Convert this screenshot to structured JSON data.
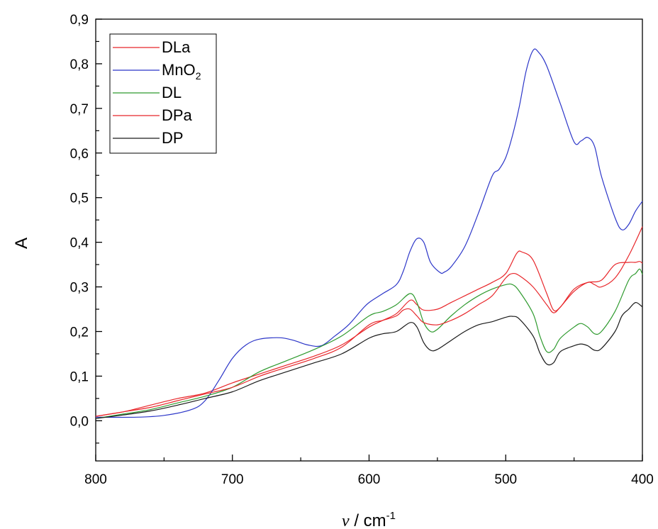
{
  "chart_data": {
    "type": "line",
    "title": "",
    "xlabel": {
      "symbol": "ν",
      "unit": " / cm",
      "exp": "-1"
    },
    "ylabel": "A",
    "xlim": [
      800,
      400
    ],
    "ylim": [
      -0.09,
      0.9
    ],
    "x_reversed": true,
    "grid": false,
    "legend_position": "top-left",
    "x_ticks": [
      {
        "v": 800,
        "label": "800"
      },
      {
        "v": 700,
        "label": "700"
      },
      {
        "v": 600,
        "label": "600"
      },
      {
        "v": 500,
        "label": "500"
      },
      {
        "v": 400,
        "label": "400"
      }
    ],
    "y_ticks": [
      {
        "v": 0.0,
        "label": "0,0"
      },
      {
        "v": 0.1,
        "label": "0,1"
      },
      {
        "v": 0.2,
        "label": "0,2"
      },
      {
        "v": 0.3,
        "label": "0,3"
      },
      {
        "v": 0.4,
        "label": "0,4"
      },
      {
        "v": 0.5,
        "label": "0,5"
      },
      {
        "v": 0.6,
        "label": "0,6"
      },
      {
        "v": 0.7,
        "label": "0,7"
      },
      {
        "v": 0.8,
        "label": "0,8"
      },
      {
        "v": 0.9,
        "label": "0,9"
      }
    ],
    "series": [
      {
        "name": "DLa",
        "name_sub": "",
        "color": "#e8262a",
        "points": [
          [
            800,
            0.01
          ],
          [
            780,
            0.02
          ],
          [
            760,
            0.035
          ],
          [
            740,
            0.05
          ],
          [
            720,
            0.062
          ],
          [
            700,
            0.085
          ],
          [
            680,
            0.105
          ],
          [
            660,
            0.125
          ],
          [
            640,
            0.145
          ],
          [
            620,
            0.17
          ],
          [
            600,
            0.21
          ],
          [
            590,
            0.225
          ],
          [
            580,
            0.24
          ],
          [
            570,
            0.27
          ],
          [
            565,
            0.26
          ],
          [
            560,
            0.248
          ],
          [
            550,
            0.25
          ],
          [
            540,
            0.265
          ],
          [
            530,
            0.28
          ],
          [
            520,
            0.295
          ],
          [
            510,
            0.31
          ],
          [
            500,
            0.33
          ],
          [
            492,
            0.375
          ],
          [
            488,
            0.378
          ],
          [
            480,
            0.36
          ],
          [
            470,
            0.285
          ],
          [
            465,
            0.248
          ],
          [
            460,
            0.255
          ],
          [
            450,
            0.295
          ],
          [
            440,
            0.31
          ],
          [
            430,
            0.315
          ],
          [
            420,
            0.35
          ],
          [
            410,
            0.355
          ],
          [
            405,
            0.355
          ],
          [
            402,
            0.357
          ],
          [
            400,
            0.353
          ]
        ]
      },
      {
        "name": "MnO",
        "name_sub": "2",
        "color": "#2b35c8",
        "points": [
          [
            800,
            0.008
          ],
          [
            770,
            0.008
          ],
          [
            750,
            0.012
          ],
          [
            730,
            0.025
          ],
          [
            720,
            0.045
          ],
          [
            710,
            0.09
          ],
          [
            700,
            0.14
          ],
          [
            690,
            0.17
          ],
          [
            680,
            0.183
          ],
          [
            665,
            0.186
          ],
          [
            655,
            0.18
          ],
          [
            645,
            0.17
          ],
          [
            635,
            0.168
          ],
          [
            625,
            0.19
          ],
          [
            615,
            0.215
          ],
          [
            605,
            0.25
          ],
          [
            600,
            0.265
          ],
          [
            590,
            0.285
          ],
          [
            580,
            0.305
          ],
          [
            575,
            0.335
          ],
          [
            570,
            0.38
          ],
          [
            565,
            0.408
          ],
          [
            560,
            0.4
          ],
          [
            555,
            0.355
          ],
          [
            548,
            0.332
          ],
          [
            545,
            0.333
          ],
          [
            540,
            0.345
          ],
          [
            530,
            0.39
          ],
          [
            520,
            0.465
          ],
          [
            510,
            0.548
          ],
          [
            505,
            0.563
          ],
          [
            500,
            0.59
          ],
          [
            495,
            0.64
          ],
          [
            490,
            0.705
          ],
          [
            485,
            0.785
          ],
          [
            480,
            0.83
          ],
          [
            476,
            0.826
          ],
          [
            470,
            0.795
          ],
          [
            460,
            0.71
          ],
          [
            450,
            0.625
          ],
          [
            445,
            0.627
          ],
          [
            440,
            0.635
          ],
          [
            435,
            0.615
          ],
          [
            430,
            0.548
          ],
          [
            420,
            0.455
          ],
          [
            415,
            0.428
          ],
          [
            410,
            0.44
          ],
          [
            405,
            0.47
          ],
          [
            400,
            0.492
          ]
        ]
      },
      {
        "name": "DL",
        "name_sub": "",
        "color": "#2e9a2e",
        "points": [
          [
            800,
            0.005
          ],
          [
            780,
            0.015
          ],
          [
            760,
            0.025
          ],
          [
            740,
            0.04
          ],
          [
            720,
            0.055
          ],
          [
            700,
            0.075
          ],
          [
            680,
            0.11
          ],
          [
            660,
            0.135
          ],
          [
            640,
            0.16
          ],
          [
            620,
            0.19
          ],
          [
            600,
            0.235
          ],
          [
            590,
            0.245
          ],
          [
            580,
            0.26
          ],
          [
            570,
            0.285
          ],
          [
            565,
            0.265
          ],
          [
            560,
            0.22
          ],
          [
            555,
            0.2
          ],
          [
            550,
            0.205
          ],
          [
            540,
            0.235
          ],
          [
            530,
            0.26
          ],
          [
            520,
            0.28
          ],
          [
            510,
            0.295
          ],
          [
            500,
            0.305
          ],
          [
            495,
            0.305
          ],
          [
            490,
            0.29
          ],
          [
            480,
            0.24
          ],
          [
            475,
            0.19
          ],
          [
            470,
            0.155
          ],
          [
            465,
            0.16
          ],
          [
            460,
            0.185
          ],
          [
            450,
            0.21
          ],
          [
            445,
            0.218
          ],
          [
            440,
            0.21
          ],
          [
            435,
            0.195
          ],
          [
            430,
            0.2
          ],
          [
            420,
            0.245
          ],
          [
            410,
            0.315
          ],
          [
            405,
            0.33
          ],
          [
            402,
            0.34
          ],
          [
            400,
            0.328
          ]
        ]
      },
      {
        "name": "DPa",
        "name_sub": "",
        "color": "#e8262a",
        "points": [
          [
            800,
            0.01
          ],
          [
            780,
            0.02
          ],
          [
            760,
            0.03
          ],
          [
            740,
            0.045
          ],
          [
            720,
            0.06
          ],
          [
            700,
            0.075
          ],
          [
            680,
            0.1
          ],
          [
            660,
            0.12
          ],
          [
            640,
            0.14
          ],
          [
            620,
            0.165
          ],
          [
            600,
            0.215
          ],
          [
            590,
            0.225
          ],
          [
            580,
            0.235
          ],
          [
            575,
            0.248
          ],
          [
            570,
            0.25
          ],
          [
            565,
            0.235
          ],
          [
            560,
            0.22
          ],
          [
            550,
            0.215
          ],
          [
            540,
            0.225
          ],
          [
            530,
            0.24
          ],
          [
            520,
            0.26
          ],
          [
            510,
            0.28
          ],
          [
            500,
            0.32
          ],
          [
            495,
            0.33
          ],
          [
            490,
            0.325
          ],
          [
            480,
            0.3
          ],
          [
            470,
            0.26
          ],
          [
            465,
            0.242
          ],
          [
            460,
            0.255
          ],
          [
            450,
            0.29
          ],
          [
            440,
            0.31
          ],
          [
            435,
            0.305
          ],
          [
            430,
            0.3
          ],
          [
            420,
            0.32
          ],
          [
            410,
            0.37
          ],
          [
            400,
            0.435
          ]
        ]
      },
      {
        "name": "DP",
        "name_sub": "",
        "color": "#1a1a1a",
        "points": [
          [
            800,
            0.005
          ],
          [
            780,
            0.013
          ],
          [
            760,
            0.022
          ],
          [
            740,
            0.035
          ],
          [
            720,
            0.05
          ],
          [
            700,
            0.065
          ],
          [
            680,
            0.09
          ],
          [
            660,
            0.11
          ],
          [
            640,
            0.13
          ],
          [
            620,
            0.15
          ],
          [
            600,
            0.185
          ],
          [
            590,
            0.195
          ],
          [
            580,
            0.2
          ],
          [
            570,
            0.22
          ],
          [
            565,
            0.21
          ],
          [
            560,
            0.175
          ],
          [
            555,
            0.158
          ],
          [
            550,
            0.16
          ],
          [
            540,
            0.18
          ],
          [
            530,
            0.2
          ],
          [
            520,
            0.215
          ],
          [
            510,
            0.222
          ],
          [
            500,
            0.232
          ],
          [
            495,
            0.234
          ],
          [
            490,
            0.228
          ],
          [
            480,
            0.19
          ],
          [
            475,
            0.152
          ],
          [
            470,
            0.127
          ],
          [
            465,
            0.13
          ],
          [
            460,
            0.155
          ],
          [
            450,
            0.168
          ],
          [
            445,
            0.172
          ],
          [
            440,
            0.168
          ],
          [
            435,
            0.158
          ],
          [
            430,
            0.162
          ],
          [
            420,
            0.2
          ],
          [
            415,
            0.235
          ],
          [
            410,
            0.25
          ],
          [
            405,
            0.265
          ],
          [
            400,
            0.255
          ]
        ]
      }
    ]
  }
}
